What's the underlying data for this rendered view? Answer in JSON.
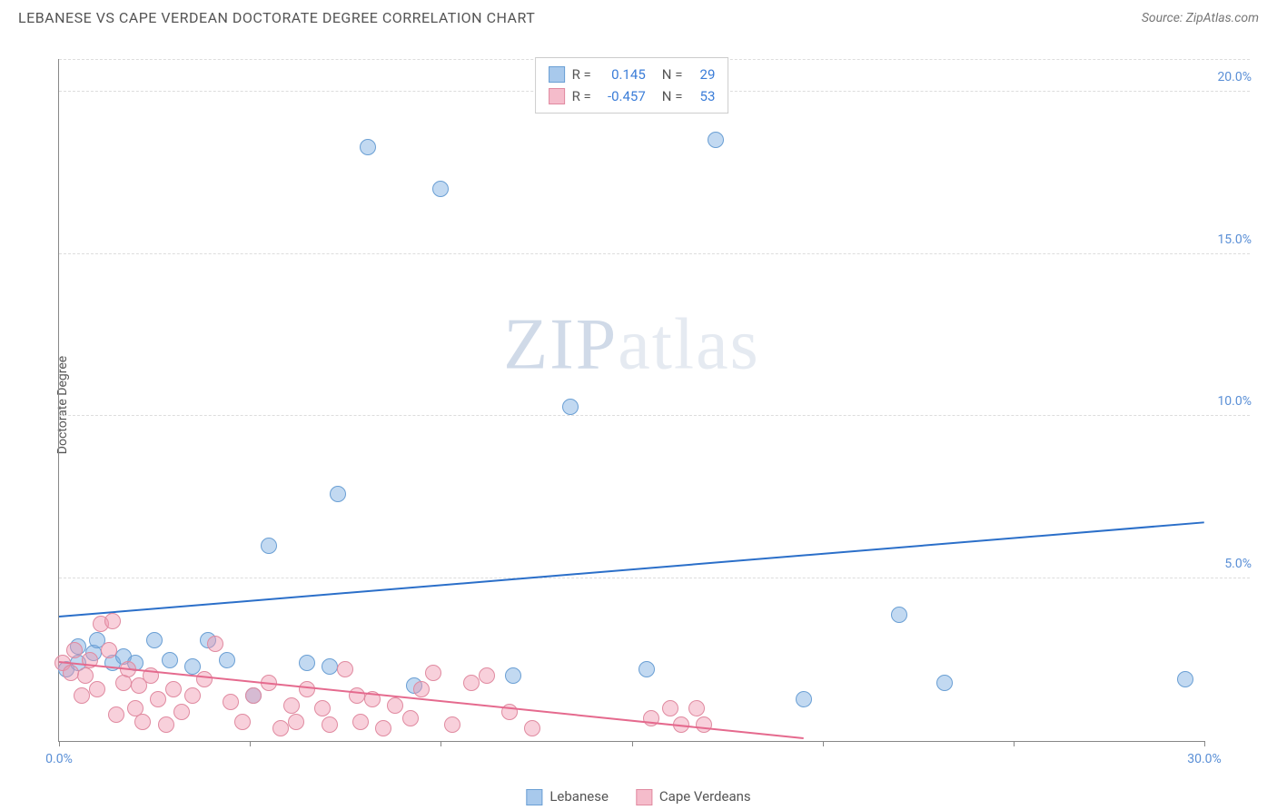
{
  "header": {
    "title": "LEBANESE VS CAPE VERDEAN DOCTORATE DEGREE CORRELATION CHART",
    "source": "Source: ZipAtlas.com"
  },
  "watermark": {
    "zip": "ZIP",
    "atlas": "atlas"
  },
  "chart": {
    "type": "scatter",
    "ylabel": "Doctorate Degree",
    "background_color": "#ffffff",
    "grid_color": "#dddddd",
    "axis_color": "#888888",
    "xlim": [
      0,
      30
    ],
    "ylim": [
      0,
      21
    ],
    "xticks": [
      0,
      5,
      10,
      15,
      20,
      25,
      30
    ],
    "yticks": [
      5,
      10,
      15,
      20
    ],
    "xtick_labels": {
      "0": "0.0%",
      "30": "30.0%"
    },
    "ytick_labels": {
      "5": "5.0%",
      "10": "10.0%",
      "15": "15.0%",
      "20": "20.0%"
    },
    "tick_label_color": "#5a8fd6",
    "tick_fontsize": 14,
    "label_fontsize": 14,
    "label_color": "#555555",
    "marker_radius": 9,
    "marker_border_width": 1,
    "series": [
      {
        "name": "Lebanese",
        "fill_color": "rgba(120,170,225,0.45)",
        "border_color": "#6a9fd4",
        "swatch_fill": "#a8c9ec",
        "swatch_border": "#6a9fd4",
        "R": "0.145",
        "N": "29",
        "trend": {
          "x1": 0,
          "y1": 3.8,
          "x2": 30,
          "y2": 6.7,
          "color": "#2b6fc9",
          "width": 2
        },
        "points": [
          [
            0.2,
            2.2
          ],
          [
            0.5,
            2.4
          ],
          [
            0.5,
            2.9
          ],
          [
            0.9,
            2.7
          ],
          [
            1.0,
            3.1
          ],
          [
            1.4,
            2.4
          ],
          [
            1.7,
            2.6
          ],
          [
            2.0,
            2.4
          ],
          [
            2.5,
            3.1
          ],
          [
            2.9,
            2.5
          ],
          [
            3.5,
            2.3
          ],
          [
            3.9,
            3.1
          ],
          [
            4.4,
            2.5
          ],
          [
            5.1,
            1.4
          ],
          [
            5.5,
            6.0
          ],
          [
            6.5,
            2.4
          ],
          [
            7.1,
            2.3
          ],
          [
            7.3,
            7.6
          ],
          [
            8.1,
            18.3
          ],
          [
            9.3,
            1.7
          ],
          [
            10.0,
            17.0
          ],
          [
            11.9,
            2.0
          ],
          [
            13.4,
            10.3
          ],
          [
            15.4,
            2.2
          ],
          [
            17.2,
            18.5
          ],
          [
            19.5,
            1.3
          ],
          [
            22.0,
            3.9
          ],
          [
            23.2,
            1.8
          ],
          [
            29.5,
            1.9
          ]
        ]
      },
      {
        "name": "Cape Verdeans",
        "fill_color": "rgba(240,150,175,0.45)",
        "border_color": "#e08aa0",
        "swatch_fill": "#f5bccb",
        "swatch_border": "#e08aa0",
        "R": "-0.457",
        "N": "53",
        "trend": {
          "x1": 0,
          "y1": 2.4,
          "x2": 19.5,
          "y2": 0.05,
          "color": "#e56a8e",
          "width": 2
        },
        "points": [
          [
            0.1,
            2.4
          ],
          [
            0.3,
            2.1
          ],
          [
            0.4,
            2.8
          ],
          [
            0.6,
            1.4
          ],
          [
            0.7,
            2.0
          ],
          [
            0.8,
            2.5
          ],
          [
            1.0,
            1.6
          ],
          [
            1.1,
            3.6
          ],
          [
            1.3,
            2.8
          ],
          [
            1.4,
            3.7
          ],
          [
            1.5,
            0.8
          ],
          [
            1.7,
            1.8
          ],
          [
            1.8,
            2.2
          ],
          [
            2.0,
            1.0
          ],
          [
            2.1,
            1.7
          ],
          [
            2.2,
            0.6
          ],
          [
            2.4,
            2.0
          ],
          [
            2.6,
            1.3
          ],
          [
            2.8,
            0.5
          ],
          [
            3.0,
            1.6
          ],
          [
            3.2,
            0.9
          ],
          [
            3.5,
            1.4
          ],
          [
            3.8,
            1.9
          ],
          [
            4.1,
            3.0
          ],
          [
            4.5,
            1.2
          ],
          [
            4.8,
            0.6
          ],
          [
            5.1,
            1.4
          ],
          [
            5.5,
            1.8
          ],
          [
            5.8,
            0.4
          ],
          [
            6.1,
            1.1
          ],
          [
            6.2,
            0.6
          ],
          [
            6.5,
            1.6
          ],
          [
            6.9,
            1.0
          ],
          [
            7.1,
            0.5
          ],
          [
            7.5,
            2.2
          ],
          [
            7.8,
            1.4
          ],
          [
            7.9,
            0.6
          ],
          [
            8.2,
            1.3
          ],
          [
            8.5,
            0.4
          ],
          [
            8.8,
            1.1
          ],
          [
            9.2,
            0.7
          ],
          [
            9.5,
            1.6
          ],
          [
            9.8,
            2.1
          ],
          [
            10.3,
            0.5
          ],
          [
            10.8,
            1.8
          ],
          [
            11.2,
            2.0
          ],
          [
            11.8,
            0.9
          ],
          [
            12.4,
            0.4
          ],
          [
            15.5,
            0.7
          ],
          [
            16.0,
            1.0
          ],
          [
            16.3,
            0.5
          ],
          [
            16.7,
            1.0
          ],
          [
            16.9,
            0.5
          ]
        ]
      }
    ],
    "legend_top": {
      "R_label": "R =",
      "N_label": "N ="
    },
    "legend_bottom": {
      "items": [
        "Lebanese",
        "Cape Verdeans"
      ]
    }
  }
}
